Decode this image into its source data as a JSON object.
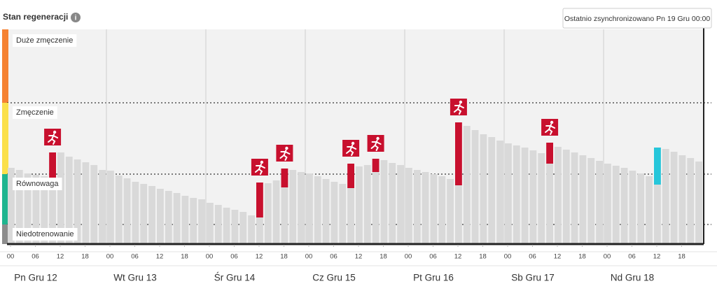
{
  "chart_data": {
    "type": "bar",
    "title": "Stan regeneracji",
    "annotation": "Ostatnio zsynchronizowano Pn 19 Gru 00:00",
    "ylim": [
      0,
      307
    ],
    "xlim": [
      0,
      168
    ],
    "color": "#d9d9d9",
    "zones": [
      {
        "name": "Duże zmęczenie",
        "from": 202,
        "to": 307,
        "color": "#f58233"
      },
      {
        "name": "Zmęczenie",
        "from": 100,
        "to": 202,
        "color": "#fbe04b"
      },
      {
        "name": "Równowaga",
        "from": 28,
        "to": 100,
        "color": "#1fb58f"
      },
      {
        "name": "Niedotrenowanie",
        "from": 0,
        "to": 28,
        "color": "#8c8c8c"
      }
    ],
    "x": [
      0,
      2,
      4,
      6,
      8,
      10,
      12,
      14,
      16,
      18,
      20,
      22,
      24,
      26,
      28,
      30,
      32,
      34,
      36,
      38,
      40,
      42,
      44,
      46,
      48,
      50,
      52,
      54,
      56,
      58,
      60,
      62,
      64,
      66,
      68,
      70,
      72,
      74,
      76,
      78,
      80,
      82,
      84,
      86,
      88,
      90,
      92,
      94,
      96,
      98,
      100,
      102,
      104,
      106,
      108,
      110,
      112,
      114,
      116,
      118,
      120,
      122,
      124,
      126,
      128,
      130,
      132,
      134,
      136,
      138,
      140,
      142,
      144,
      146,
      148,
      150,
      152,
      154,
      156,
      158,
      160,
      162,
      164,
      166
    ],
    "values": [
      109,
      106,
      101,
      99,
      97,
      95,
      131,
      125,
      121,
      117,
      113,
      106,
      105,
      98,
      94,
      89,
      86,
      83,
      79,
      76,
      73,
      69,
      66,
      64,
      59,
      56,
      52,
      49,
      46,
      41,
      38,
      87,
      91,
      106,
      106,
      103,
      101,
      97,
      93,
      89,
      86,
      83,
      111,
      113,
      117,
      120,
      116,
      113,
      109,
      106,
      103,
      100,
      97,
      93,
      84,
      169,
      163,
      157,
      153,
      148,
      144,
      141,
      138,
      134,
      130,
      115,
      139,
      135,
      131,
      127,
      123,
      119,
      115,
      112,
      109,
      105,
      101,
      97,
      138,
      136,
      132,
      127,
      123,
      118
    ],
    "events_color": "#c8102e",
    "events": [
      {
        "x": 10,
        "from": 94,
        "to": 131
      },
      {
        "x": 60,
        "from": 38,
        "to": 88
      },
      {
        "x": 66,
        "from": 81,
        "to": 108
      },
      {
        "x": 82,
        "from": 80,
        "to": 115
      },
      {
        "x": 88,
        "from": 103,
        "to": 122
      },
      {
        "x": 108,
        "from": 84,
        "to": 174
      },
      {
        "x": 130,
        "from": 115,
        "to": 145
      }
    ],
    "recovery_color": "#26c6da",
    "recovery": [
      {
        "x": 156,
        "from": 85,
        "to": 138
      }
    ],
    "xticks": [
      {
        "value": 0,
        "label": "00"
      },
      {
        "value": 6,
        "label": "06"
      },
      {
        "value": 12,
        "label": "12"
      },
      {
        "value": 18,
        "label": "18"
      },
      {
        "value": 24,
        "label": "00"
      },
      {
        "value": 30,
        "label": "06"
      },
      {
        "value": 36,
        "label": "12"
      },
      {
        "value": 42,
        "label": "18"
      },
      {
        "value": 48,
        "label": "00"
      },
      {
        "value": 54,
        "label": "06"
      },
      {
        "value": 60,
        "label": "12"
      },
      {
        "value": 66,
        "label": "18"
      },
      {
        "value": 72,
        "label": "00"
      },
      {
        "value": 78,
        "label": "06"
      },
      {
        "value": 84,
        "label": "12"
      },
      {
        "value": 90,
        "label": "18"
      },
      {
        "value": 96,
        "label": "00"
      },
      {
        "value": 102,
        "label": "06"
      },
      {
        "value": 108,
        "label": "12"
      },
      {
        "value": 114,
        "label": "18"
      },
      {
        "value": 120,
        "label": "00"
      },
      {
        "value": 126,
        "label": "06"
      },
      {
        "value": 132,
        "label": "12"
      },
      {
        "value": 138,
        "label": "18"
      },
      {
        "value": 144,
        "label": "00"
      },
      {
        "value": 150,
        "label": "06"
      },
      {
        "value": 156,
        "label": "12"
      },
      {
        "value": 162,
        "label": "18"
      }
    ],
    "days": [
      {
        "value": 0,
        "label": "Pn Gru 12"
      },
      {
        "value": 24,
        "label": "Wt Gru 13"
      },
      {
        "value": 48,
        "label": "Śr Gru 14"
      },
      {
        "value": 72,
        "label": "Cz Gru 15"
      },
      {
        "value": 96,
        "label": "Pt Gru 16"
      },
      {
        "value": 120,
        "label": "Sb Gru 17"
      },
      {
        "value": 144,
        "label": "Nd Gru 18"
      }
    ]
  }
}
